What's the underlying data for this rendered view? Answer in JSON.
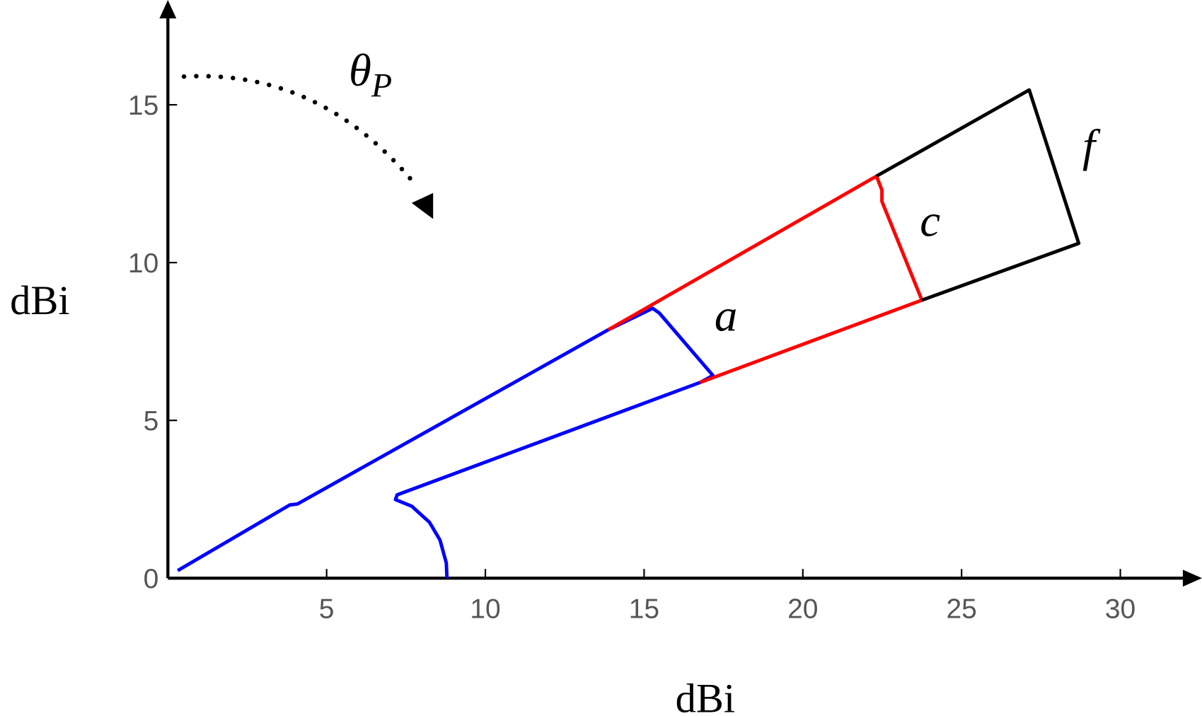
{
  "chart_data": {
    "type": "line",
    "x_label": "dBi",
    "y_label": "dBi",
    "xlim": [
      0,
      32.5
    ],
    "ylim": [
      0,
      18.2
    ],
    "xticks": [
      5,
      10,
      15,
      20,
      25,
      30
    ],
    "yticks": [
      0,
      5,
      10,
      15
    ],
    "annotations": [
      {
        "text": "θ",
        "sub": "P"
      },
      {
        "text": "a"
      },
      {
        "text": "c"
      },
      {
        "text": "f"
      }
    ],
    "series": [
      {
        "color": "#0000ff",
        "x": [
          0.31,
          3.84,
          4.08,
          13.87,
          15.27,
          15.48,
          17.17,
          16.76,
          7.22,
          7.17,
          7.68,
          8.24,
          8.57,
          8.77,
          8.79
        ],
        "values": [
          0.24,
          2.32,
          2.35,
          7.87,
          8.55,
          8.4,
          6.42,
          6.2,
          2.64,
          2.49,
          2.28,
          1.77,
          1.21,
          0.48,
          0
        ]
      },
      {
        "color": "#ff0000",
        "x": [
          13.87,
          22.32,
          22.49,
          22.49,
          23.75,
          16.76
        ],
        "values": [
          7.87,
          12.74,
          12.3,
          11.94,
          8.81,
          6.2
        ]
      },
      {
        "color": "#000000",
        "x": [
          22.32,
          27.13,
          28.69,
          23.75
        ],
        "values": [
          12.74,
          15.47,
          10.61,
          8.81
        ]
      }
    ]
  }
}
